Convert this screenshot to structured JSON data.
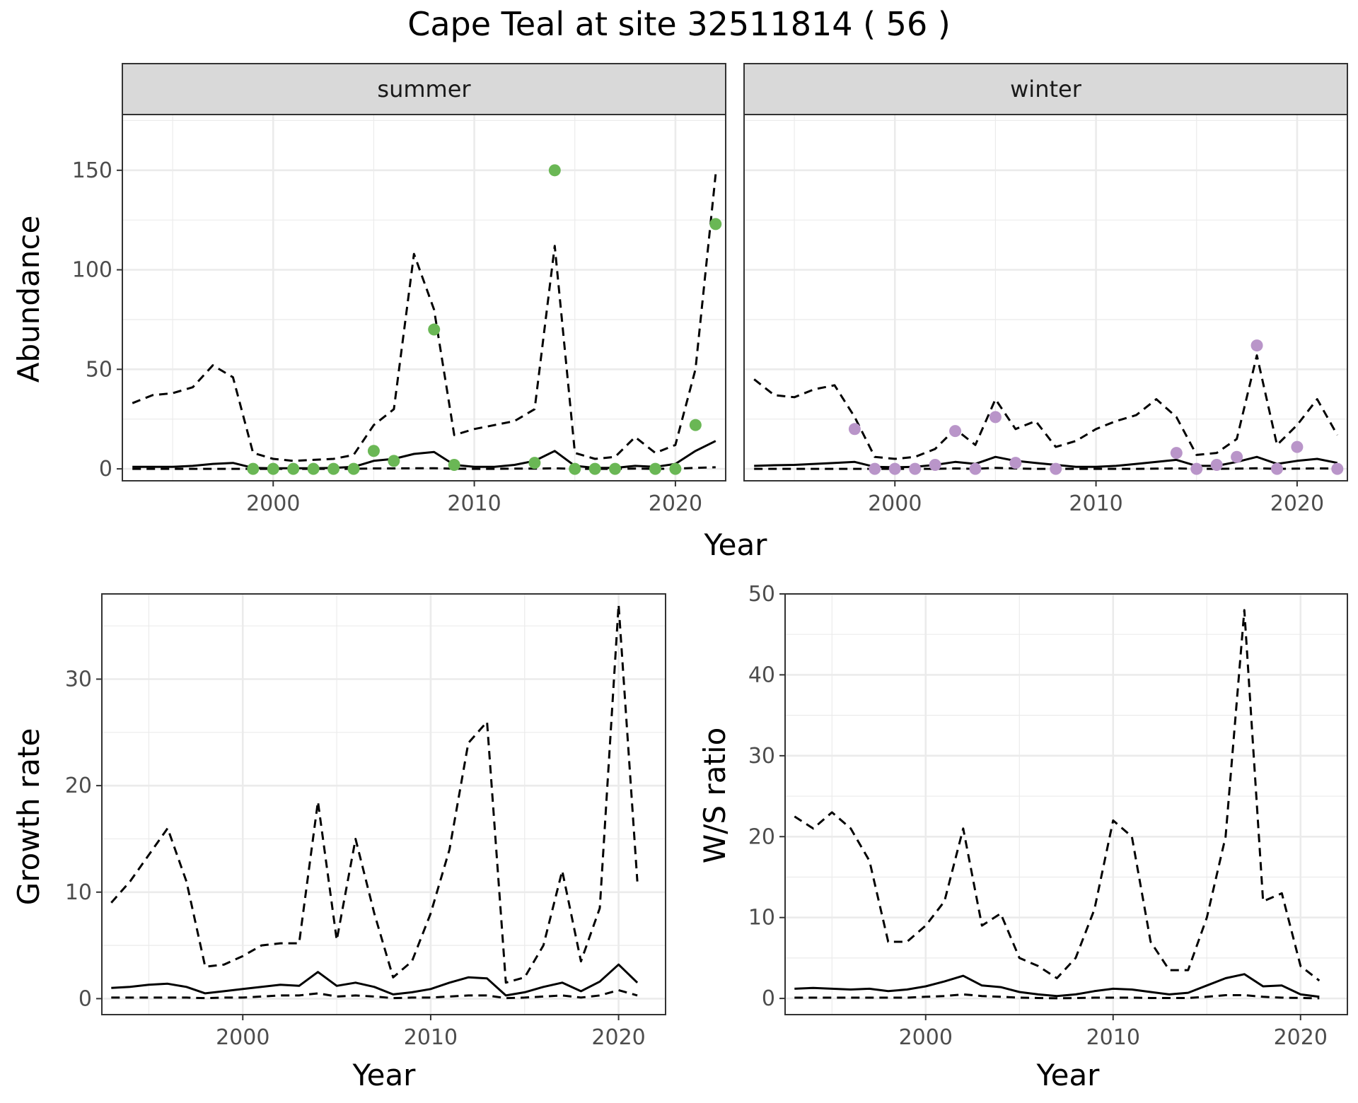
{
  "chart_data": {
    "title": "Cape Teal at site 32511814 ( 56 )",
    "type": "line",
    "panels": [
      {
        "id": "abundance",
        "type": "line",
        "facets": [
          "summer",
          "winter"
        ],
        "xlabel": "Year",
        "ylabel": "Abundance",
        "xlim": [
          1992.5,
          2022.5
        ],
        "ylim": [
          -6,
          178
        ],
        "xticks": [
          2000,
          2010,
          2020
        ],
        "yticks": [
          0,
          50,
          100,
          150
        ],
        "grid": true,
        "series": {
          "summer": {
            "median": {
              "x": [
                1993,
                1994,
                1995,
                1996,
                1997,
                1998,
                1999,
                2000,
                2001,
                2002,
                2003,
                2004,
                2005,
                2006,
                2007,
                2008,
                2009,
                2010,
                2011,
                2012,
                2013,
                2014,
                2015,
                2016,
                2017,
                2018,
                2019,
                2020,
                2021,
                2022
              ],
              "y": [
                1,
                1,
                1,
                1.5,
                2.5,
                3,
                0.5,
                0.3,
                0.3,
                0.3,
                0.5,
                1,
                4,
                5,
                7.5,
                8.5,
                2,
                1,
                1,
                2,
                4,
                9,
                1.5,
                0.5,
                0.5,
                1.5,
                1,
                2.5,
                9,
                14
              ]
            },
            "upper": {
              "x": [
                1993,
                1994,
                1995,
                1996,
                1997,
                1998,
                1999,
                2000,
                2001,
                2002,
                2003,
                2004,
                2005,
                2006,
                2007,
                2008,
                2009,
                2010,
                2011,
                2012,
                2013,
                2014,
                2015,
                2016,
                2017,
                2018,
                2019,
                2020,
                2021,
                2022
              ],
              "y": [
                33,
                37,
                38,
                41,
                52,
                46,
                8,
                5,
                4,
                4.5,
                5,
                7,
                22,
                30,
                108,
                80,
                17,
                20,
                22,
                24,
                30,
                112,
                8,
                5,
                6,
                16,
                8,
                12,
                50,
                148
              ]
            },
            "lower": {
              "x": [
                1993,
                1994,
                1995,
                1996,
                1997,
                1998,
                1999,
                2000,
                2001,
                2002,
                2003,
                2004,
                2005,
                2006,
                2007,
                2008,
                2009,
                2010,
                2011,
                2012,
                2013,
                2014,
                2015,
                2016,
                2017,
                2018,
                2019,
                2020,
                2021,
                2022
              ],
              "y": [
                0,
                0,
                0,
                0,
                0,
                0,
                0,
                0,
                0,
                0,
                0,
                0,
                0.2,
                0.2,
                0.3,
                0.3,
                0.1,
                0,
                0,
                0.1,
                0.1,
                0.3,
                0,
                0,
                0,
                0.1,
                0,
                0.1,
                0.5,
                0.8
              ]
            },
            "observed": {
              "color": "#6ab755",
              "x": [
                1999,
                2000,
                2001,
                2002,
                2003,
                2004,
                2005,
                2006,
                2008,
                2009,
                2013,
                2014,
                2015,
                2016,
                2017,
                2019,
                2020,
                2021,
                2022
              ],
              "y": [
                0,
                0,
                0,
                0,
                0,
                0,
                9,
                4,
                70,
                2,
                3,
                150,
                0,
                0,
                0,
                0,
                0,
                22,
                123
              ]
            }
          },
          "winter": {
            "median": {
              "x": [
                1993,
                1994,
                1995,
                1996,
                1997,
                1998,
                1999,
                2000,
                2001,
                2002,
                2003,
                2004,
                2005,
                2006,
                2007,
                2008,
                2009,
                2010,
                2011,
                2012,
                2013,
                2014,
                2015,
                2016,
                2017,
                2018,
                2019,
                2020,
                2021,
                2022
              ],
              "y": [
                1.5,
                1.8,
                2,
                2.5,
                3,
                3.5,
                1,
                0.8,
                1,
                2,
                3.5,
                2.5,
                6,
                4,
                3,
                2,
                1,
                1,
                1.5,
                2.5,
                3.5,
                4.5,
                1.5,
                1.5,
                3.5,
                6,
                2.5,
                4,
                5,
                3
              ]
            },
            "upper": {
              "x": [
                1993,
                1994,
                1995,
                1996,
                1997,
                1998,
                1999,
                2000,
                2001,
                2002,
                2003,
                2004,
                2005,
                2006,
                2007,
                2008,
                2009,
                2010,
                2011,
                2012,
                2013,
                2014,
                2015,
                2016,
                2017,
                2018,
                2019,
                2020,
                2021,
                2022
              ],
              "y": [
                45,
                37,
                36,
                40,
                42,
                26,
                6,
                5,
                6,
                10,
                20,
                12,
                35,
                20,
                24,
                11,
                14,
                20,
                24,
                27,
                35,
                26,
                7,
                8,
                15,
                57,
                12,
                22,
                35,
                17
              ]
            },
            "lower": {
              "x": [
                1993,
                1994,
                1995,
                1996,
                1997,
                1998,
                1999,
                2000,
                2001,
                2002,
                2003,
                2004,
                2005,
                2006,
                2007,
                2008,
                2009,
                2010,
                2011,
                2012,
                2013,
                2014,
                2015,
                2016,
                2017,
                2018,
                2019,
                2020,
                2021,
                2022
              ],
              "y": [
                0,
                0,
                0,
                0,
                0,
                0,
                0,
                0,
                0,
                0,
                0.2,
                0,
                0.5,
                0.2,
                0,
                0,
                0,
                0,
                0,
                0,
                0.1,
                0.2,
                0,
                0,
                0.1,
                0.3,
                0,
                0.1,
                0.2,
                0.1
              ]
            },
            "observed": {
              "color": "#b995c9",
              "x": [
                1998,
                1999,
                2000,
                2001,
                2002,
                2003,
                2004,
                2005,
                2006,
                2008,
                2014,
                2015,
                2016,
                2017,
                2018,
                2019,
                2020,
                2022
              ],
              "y": [
                20,
                0,
                0,
                0,
                2,
                19,
                0,
                26,
                3,
                0,
                8,
                0,
                2,
                6,
                62,
                0,
                11,
                0
              ]
            }
          }
        }
      },
      {
        "id": "growth",
        "type": "line",
        "xlabel": "Year",
        "ylabel": "Growth rate",
        "xlim": [
          1992.5,
          2022.5
        ],
        "ylim": [
          -1.5,
          38
        ],
        "xticks": [
          2000,
          2010,
          2020
        ],
        "yticks": [
          0,
          10,
          20,
          30
        ],
        "grid": true,
        "series": {
          "median": {
            "x": [
              1993,
              1994,
              1995,
              1996,
              1997,
              1998,
              1999,
              2000,
              2001,
              2002,
              2003,
              2004,
              2005,
              2006,
              2007,
              2008,
              2009,
              2010,
              2011,
              2012,
              2013,
              2014,
              2015,
              2016,
              2017,
              2018,
              2019,
              2020,
              2021
            ],
            "y": [
              1,
              1.1,
              1.3,
              1.4,
              1.1,
              0.5,
              0.7,
              0.9,
              1.1,
              1.3,
              1.2,
              2.5,
              1.2,
              1.5,
              1.1,
              0.4,
              0.6,
              0.9,
              1.5,
              2,
              1.9,
              0.3,
              0.6,
              1.1,
              1.5,
              0.7,
              1.6,
              3.2,
              1.5
            ]
          },
          "upper": {
            "x": [
              1993,
              1994,
              1995,
              1996,
              1997,
              1998,
              1999,
              2000,
              2001,
              2002,
              2003,
              2004,
              2005,
              2006,
              2007,
              2008,
              2009,
              2010,
              2011,
              2012,
              2013,
              2014,
              2015,
              2016,
              2017,
              2018,
              2019,
              2020,
              2021
            ],
            "y": [
              9,
              11,
              13.5,
              16,
              11,
              3,
              3.2,
              4,
              5,
              5.2,
              5.2,
              18.5,
              5.5,
              15,
              8,
              2,
              3.5,
              8,
              14,
              24,
              26,
              1.5,
              2,
              5,
              12,
              3.5,
              8.5,
              37,
              11
            ]
          },
          "lower": {
            "x": [
              1993,
              1994,
              1995,
              1996,
              1997,
              1998,
              1999,
              2000,
              2001,
              2002,
              2003,
              2004,
              2005,
              2006,
              2007,
              2008,
              2009,
              2010,
              2011,
              2012,
              2013,
              2014,
              2015,
              2016,
              2017,
              2018,
              2019,
              2020,
              2021
            ],
            "y": [
              0.1,
              0.1,
              0.1,
              0.1,
              0.1,
              0.05,
              0.1,
              0.1,
              0.2,
              0.3,
              0.3,
              0.5,
              0.2,
              0.3,
              0.2,
              0.05,
              0.1,
              0.1,
              0.2,
              0.3,
              0.3,
              0.05,
              0.1,
              0.2,
              0.3,
              0.1,
              0.3,
              0.8,
              0.3
            ]
          }
        }
      },
      {
        "id": "ratio",
        "type": "line",
        "xlabel": "Year",
        "ylabel": "W/S ratio",
        "xlim": [
          1992.5,
          2022.5
        ],
        "ylim": [
          -2,
          50
        ],
        "xticks": [
          2000,
          2010,
          2020
        ],
        "yticks": [
          0,
          10,
          20,
          30,
          40,
          50
        ],
        "grid": true,
        "series": {
          "median": {
            "x": [
              1993,
              1994,
              1995,
              1996,
              1997,
              1998,
              1999,
              2000,
              2001,
              2002,
              2003,
              2004,
              2005,
              2006,
              2007,
              2008,
              2009,
              2010,
              2011,
              2012,
              2013,
              2014,
              2015,
              2016,
              2017,
              2018,
              2019,
              2020,
              2021
            ],
            "y": [
              1.2,
              1.3,
              1.2,
              1.1,
              1.2,
              0.9,
              1.1,
              1.5,
              2.1,
              2.8,
              1.6,
              1.4,
              0.8,
              0.5,
              0.3,
              0.5,
              0.9,
              1.2,
              1.1,
              0.8,
              0.5,
              0.7,
              1.6,
              2.5,
              3,
              1.5,
              1.6,
              0.5,
              0.2
            ]
          },
          "upper": {
            "x": [
              1993,
              1994,
              1995,
              1996,
              1997,
              1998,
              1999,
              2000,
              2001,
              2002,
              2003,
              2004,
              2005,
              2006,
              2007,
              2008,
              2009,
              2010,
              2011,
              2012,
              2013,
              2014,
              2015,
              2016,
              2017,
              2018,
              2019,
              2020,
              2021
            ],
            "y": [
              22.5,
              21,
              23,
              21,
              17,
              7,
              7,
              9,
              12,
              21,
              9,
              10.5,
              5,
              4,
              2.5,
              5,
              11,
              22,
              20,
              7,
              3.5,
              3.5,
              10,
              20,
              48,
              12,
              13,
              4,
              2.2
            ]
          },
          "lower": {
            "x": [
              1993,
              1994,
              1995,
              1996,
              1997,
              1998,
              1999,
              2000,
              2001,
              2002,
              2003,
              2004,
              2005,
              2006,
              2007,
              2008,
              2009,
              2010,
              2011,
              2012,
              2013,
              2014,
              2015,
              2016,
              2017,
              2018,
              2019,
              2020,
              2021
            ],
            "y": [
              0.1,
              0.1,
              0.1,
              0.1,
              0.1,
              0.1,
              0.1,
              0.2,
              0.3,
              0.5,
              0.3,
              0.2,
              0.1,
              0.05,
              0.02,
              0.05,
              0.1,
              0.1,
              0.1,
              0.05,
              0.05,
              0.05,
              0.2,
              0.4,
              0.4,
              0.2,
              0.1,
              0.05,
              0.02
            ]
          }
        }
      }
    ]
  }
}
